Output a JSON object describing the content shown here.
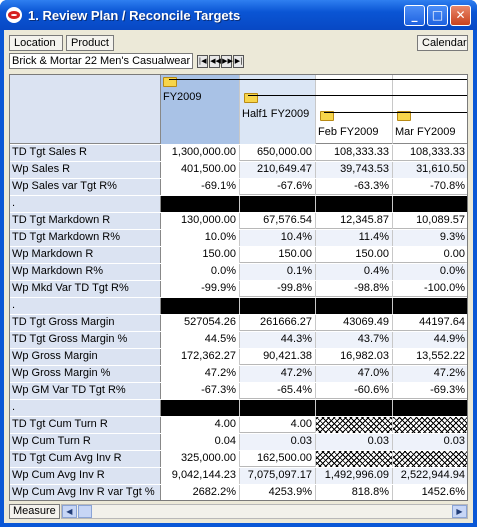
{
  "window": {
    "title": "1. Review Plan / Reconcile Targets"
  },
  "toolbar": {
    "location_label": "Location",
    "product_label": "Product",
    "calendar_label": "Calendar"
  },
  "path": {
    "text": "Brick & Mortar  22 Men's Casualwear"
  },
  "columns": [
    "FY2009",
    "Half1 FY2009",
    "Feb FY2009",
    "Mar FY2009"
  ],
  "rows": [
    {
      "label": "TD Tgt Sales R",
      "values": [
        "1,300,000.00",
        "650,000.00",
        "108,333.33",
        "108,333.33"
      ]
    },
    {
      "label": "Wp Sales R",
      "values": [
        "401,500.00",
        "210,649.47",
        "39,743.53",
        "31,610.50"
      ]
    },
    {
      "label": "Wp Sales var Tgt R%",
      "values": [
        "-69.1%",
        "-67.6%",
        "-63.3%",
        "-70.8%"
      ]
    },
    {
      "label": ".",
      "values": [
        "",
        "",
        "",
        ""
      ],
      "separator": true
    },
    {
      "label": "TD Tgt Markdown R",
      "values": [
        "130,000.00",
        "67,576.54",
        "12,345.87",
        "10,089.57"
      ]
    },
    {
      "label": "TD Tgt Markdown R%",
      "values": [
        "10.0%",
        "10.4%",
        "11.4%",
        "9.3%"
      ]
    },
    {
      "label": "Wp Markdown R",
      "values": [
        "150.00",
        "150.00",
        "150.00",
        "0.00"
      ]
    },
    {
      "label": "Wp Markdown R%",
      "values": [
        "0.0%",
        "0.1%",
        "0.4%",
        "0.0%"
      ]
    },
    {
      "label": "Wp Mkd Var TD Tgt R%",
      "values": [
        "-99.9%",
        "-99.8%",
        "-98.8%",
        "-100.0%"
      ]
    },
    {
      "label": ".",
      "values": [
        "",
        "",
        "",
        ""
      ],
      "separator": true
    },
    {
      "label": "TD Tgt Gross Margin",
      "values": [
        "527054.26",
        "261666.27",
        "43069.49",
        "44197.64"
      ]
    },
    {
      "label": "TD Tgt Gross Margin %",
      "values": [
        "44.5%",
        "44.3%",
        "43.7%",
        "44.9%"
      ]
    },
    {
      "label": "Wp Gross Margin",
      "values": [
        "172,362.27",
        "90,421.38",
        "16,982.03",
        "13,552.22"
      ]
    },
    {
      "label": "Wp Gross Margin %",
      "values": [
        "47.2%",
        "47.2%",
        "47.0%",
        "47.2%"
      ]
    },
    {
      "label": "Wp GM Var TD Tgt R%",
      "values": [
        "-67.3%",
        "-65.4%",
        "-60.6%",
        "-69.3%"
      ]
    },
    {
      "label": ".",
      "values": [
        "",
        "",
        "",
        ""
      ],
      "separator": true
    },
    {
      "label": "TD Tgt Cum Turn R",
      "values": [
        "4.00",
        "4.00",
        "",
        ""
      ],
      "hatched": [
        2,
        3
      ]
    },
    {
      "label": "Wp Cum Turn R",
      "values": [
        "0.04",
        "0.03",
        "0.03",
        "0.03"
      ]
    },
    {
      "label": "TD Tgt Cum Avg Inv R",
      "values": [
        "325,000.00",
        "162,500.00",
        "",
        ""
      ],
      "hatched": [
        2,
        3
      ]
    },
    {
      "label": "Wp Cum Avg Inv R",
      "values": [
        "9,042,144.23",
        "7,075,097.17",
        "1,492,996.09",
        "2,522,944.94"
      ]
    },
    {
      "label": "Wp Cum Avg Inv R var Tgt %",
      "values": [
        "2682.2%",
        "4253.9%",
        "818.8%",
        "1452.6%"
      ]
    }
  ],
  "statusbar": {
    "measure_label": "Measure"
  }
}
